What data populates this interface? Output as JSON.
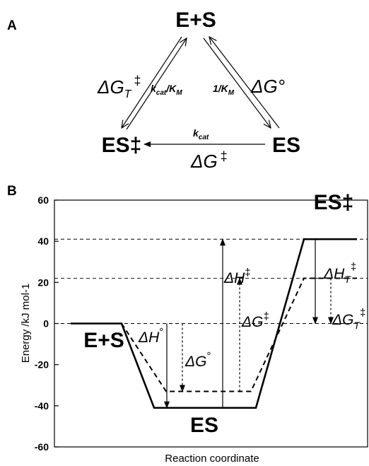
{
  "panel_a": {
    "letter": "A",
    "nodes": {
      "top": "E+S",
      "left": "ES‡",
      "right": "ES"
    },
    "edges": {
      "left": {
        "delta": "ΔG",
        "delta_sub": "T",
        "delta_sup": "‡",
        "rate": "k",
        "rate_sub": "cat",
        "rate_sep": "/K",
        "rate_sub2": "M"
      },
      "right": {
        "delta": "ΔG°",
        "rate": "1/K",
        "rate_sub": "M"
      },
      "bottom": {
        "delta": "ΔG",
        "delta_sup": "‡",
        "rate": "k",
        "rate_sub": "cat"
      }
    }
  },
  "panel_b": {
    "letter": "B",
    "species": {
      "reactant": "E+S",
      "intermediate": "ES",
      "transition": "ES‡"
    },
    "labels": {
      "dH0": {
        "base": "ΔH",
        "sup": "°"
      },
      "dG0": {
        "base": "ΔG",
        "sup": "°"
      },
      "dHdd": {
        "base": "ΔH",
        "sup": "‡"
      },
      "dGdd": {
        "base": "ΔG",
        "sup": "‡"
      },
      "dHT": {
        "base": "ΔH",
        "sub": "T",
        "sup": "‡"
      },
      "dGT": {
        "base": "ΔG",
        "sub": "T",
        "sup": "‡"
      }
    }
  },
  "chart_data": {
    "type": "line",
    "xlabel": "Reaction coordinate",
    "ylabel": "Energy /kJ mol-1",
    "ylim": [
      -60,
      60
    ],
    "yticks": [
      -60,
      -40,
      -20,
      0,
      20,
      40,
      60
    ],
    "series": [
      {
        "style": "solid",
        "points": [
          [
            0,
            0
          ],
          [
            1,
            0
          ],
          [
            2,
            -41
          ],
          [
            3,
            -41
          ],
          [
            4,
            41
          ],
          [
            5,
            41
          ]
        ]
      },
      {
        "style": "dashed",
        "points": [
          [
            0,
            0
          ],
          [
            1,
            0
          ],
          [
            2,
            -33
          ],
          [
            3,
            -33
          ],
          [
            4,
            22
          ],
          [
            5,
            22
          ]
        ]
      }
    ],
    "reference_levels": [
      41,
      22,
      0
    ],
    "values": {
      "dH0": -41,
      "dG0": -33,
      "dHdd": 82,
      "dGdd": 55,
      "dHT": 41,
      "dGT": 22
    }
  }
}
